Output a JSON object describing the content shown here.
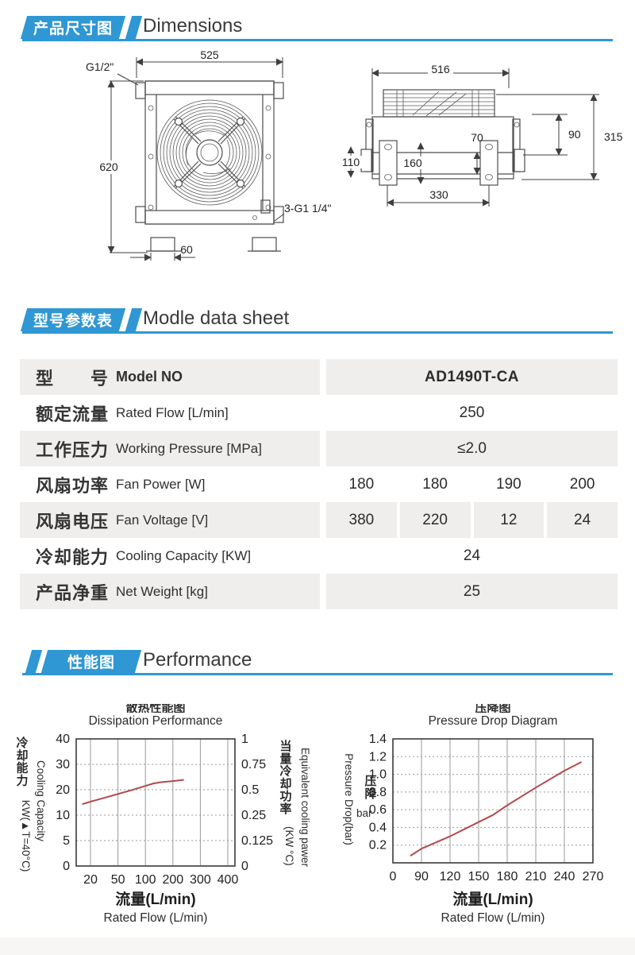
{
  "colors": {
    "accent": "#2f97d4",
    "row_gray": "#f0eeec",
    "curve_red": "#b14a4e"
  },
  "sections": {
    "dimensions": {
      "tag_cn": "产品尺寸图",
      "title_en": "Dimensions",
      "front_view": {
        "labels": {
          "width": "525",
          "height": "620",
          "port_top": "G1/2\"",
          "port_side": "3-G1 1/4\"",
          "foot_width": "60"
        }
      },
      "side_view": {
        "labels": {
          "width": "516",
          "total_height": "315",
          "hole_top": "90",
          "center_gap": "70",
          "port_height": "110",
          "plate_height": "160",
          "hole_span": "330"
        }
      }
    },
    "datasheet": {
      "tag_cn": "型号参数表",
      "title_en": "Modle data sheet",
      "table": {
        "rows": [
          {
            "cn": "型　　号",
            "en": "Model NO",
            "values": [
              "AD1490T-CA"
            ]
          },
          {
            "cn": "额定流量",
            "en": "Rated Flow [L/min]",
            "values": [
              "250"
            ]
          },
          {
            "cn": "工作压力",
            "en": "Working Pressure [MPa]",
            "values": [
              "≤2.0"
            ]
          },
          {
            "cn": "风扇功率",
            "en": "Fan Power [W]",
            "values": [
              "180",
              "180",
              "190",
              "200"
            ]
          },
          {
            "cn": "风扇电压",
            "en": "Fan Voltage [V]",
            "values": [
              "380",
              "220",
              "12",
              "24"
            ]
          },
          {
            "cn": "冷却能力",
            "en": "Cooling Capacity [KW]",
            "values": [
              "24"
            ]
          },
          {
            "cn": "产品净重",
            "en": "Net Weight [kg]",
            "values": [
              "25"
            ]
          }
        ]
      }
    },
    "performance": {
      "tag_cn": "性能图",
      "title_en": "Performance"
    }
  },
  "chart_data": [
    {
      "type": "line",
      "title_cn": "散热性能图",
      "title_en": "Dissipation Performance",
      "xlabel_cn": "流量(L/min)",
      "xlabel_en": "Rated Flow (L/min)",
      "ylabel_cn": "冷却能力",
      "ylabel_sub": "KW(▲T=40°C)",
      "ylabel_en": "Cooling Capacity",
      "y2label_cn": "当量冷却功率",
      "y2label_unit": "(KW °C)",
      "y2label_en": "Equivalent cooling pawer",
      "x_ticks": [
        20,
        50,
        100,
        200,
        300,
        400
      ],
      "y_ticks": [
        0,
        5,
        10,
        20,
        30,
        40
      ],
      "y2_labels": [
        "0",
        "0.125",
        "0.25",
        "0.5",
        "0.75",
        "1"
      ],
      "grid": true,
      "legend": "none",
      "series": [
        {
          "name": "cooling-capacity",
          "color": "#b14a4e",
          "points": [
            [
              11,
              14.3
            ],
            [
              20,
              15.3
            ],
            [
              50,
              18.3
            ],
            [
              80,
              20.2
            ],
            [
              100,
              21.5
            ],
            [
              130,
              22.5
            ],
            [
              160,
              23.0
            ],
            [
              200,
              23.4
            ],
            [
              240,
              23.9
            ]
          ]
        }
      ]
    },
    {
      "type": "line",
      "title_cn": "压降图",
      "title_en": "Pressure Drop Diagram",
      "xlabel_cn": "流量(L/min)",
      "xlabel_en": "Rated Flow (L/min)",
      "ylabel_en": "Pressure Drop(bar)",
      "ylabel_cn": "压降",
      "ylabel_unit": "bar",
      "x_ticks": [
        0,
        90,
        120,
        150,
        180,
        210,
        240,
        270
      ],
      "y_ticks": [
        0,
        0.2,
        0.4,
        0.6,
        0.8,
        1.0,
        1.2,
        1.4
      ],
      "y_tick_labels": [
        "",
        "0.2",
        "0.4",
        "0.6",
        "0.8",
        "1.0",
        "1.2",
        "1.4"
      ],
      "grid": true,
      "legend": "none",
      "series": [
        {
          "name": "pressure-drop",
          "color": "#b14a4e",
          "points": [
            [
              55,
              0.08
            ],
            [
              90,
              0.16
            ],
            [
              120,
              0.3
            ],
            [
              150,
              0.46
            ],
            [
              165,
              0.54
            ],
            [
              180,
              0.65
            ],
            [
              210,
              0.85
            ],
            [
              240,
              1.04
            ],
            [
              258,
              1.14
            ]
          ]
        }
      ]
    }
  ]
}
